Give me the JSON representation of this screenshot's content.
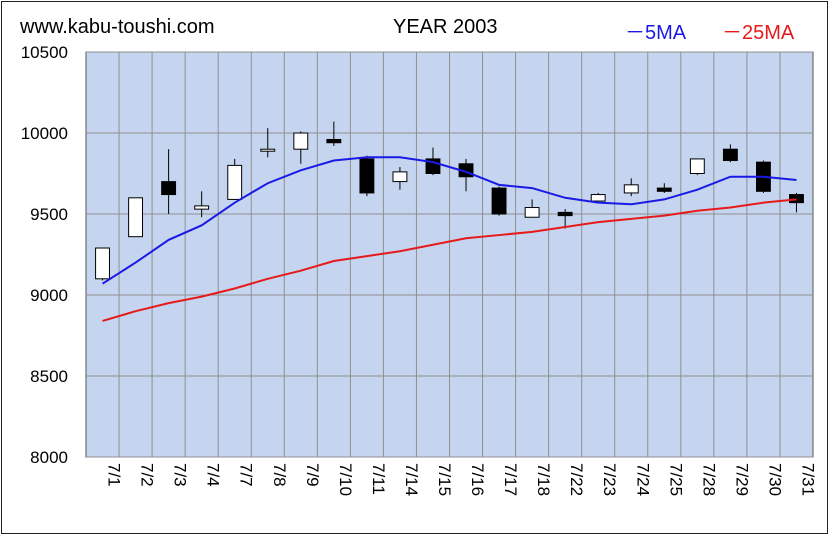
{
  "header": {
    "site": "www.kabu-toushi.com",
    "title": "YEAR 2003",
    "legend_ma5": "－5MA",
    "legend_ma25": "－25MA"
  },
  "colors": {
    "plot_bg": "#c5d5ef",
    "grid": "#8f8f8f",
    "ma5": "#1a1ae6",
    "ma25": "#e61a1a",
    "up_candle": "#ffffff",
    "down_candle": "#000000"
  },
  "chart_data": {
    "type": "candlestick",
    "title": "YEAR 2003",
    "categories": [
      "7/1",
      "7/2",
      "7/3",
      "7/4",
      "7/7",
      "7/8",
      "7/9",
      "7/10",
      "7/11",
      "7/14",
      "7/15",
      "7/16",
      "7/17",
      "7/18",
      "7/22",
      "7/23",
      "7/24",
      "7/25",
      "7/28",
      "7/29",
      "7/30",
      "7/31"
    ],
    "ylim": [
      8000,
      10500
    ],
    "yticks": [
      8000,
      8500,
      9000,
      9500,
      10000,
      10500
    ],
    "grid": true,
    "legend_position": "top-right",
    "candles": [
      {
        "open": 9100,
        "high": 9290,
        "low": 9090,
        "close": 9290
      },
      {
        "open": 9360,
        "high": 9600,
        "low": 9360,
        "close": 9600
      },
      {
        "open": 9700,
        "high": 9900,
        "low": 9500,
        "close": 9620
      },
      {
        "open": 9530,
        "high": 9640,
        "low": 9480,
        "close": 9550
      },
      {
        "open": 9590,
        "high": 9840,
        "low": 9590,
        "close": 9800
      },
      {
        "open": 9890,
        "high": 10030,
        "low": 9850,
        "close": 9900
      },
      {
        "open": 9900,
        "high": 10010,
        "low": 9810,
        "close": 10000
      },
      {
        "open": 9960,
        "high": 10070,
        "low": 9920,
        "close": 9940
      },
      {
        "open": 9840,
        "high": 9860,
        "low": 9610,
        "close": 9630
      },
      {
        "open": 9700,
        "high": 9790,
        "low": 9650,
        "close": 9760
      },
      {
        "open": 9840,
        "high": 9910,
        "low": 9740,
        "close": 9750
      },
      {
        "open": 9810,
        "high": 9840,
        "low": 9640,
        "close": 9730
      },
      {
        "open": 9660,
        "high": 9670,
        "low": 9490,
        "close": 9500
      },
      {
        "open": 9480,
        "high": 9590,
        "low": 9480,
        "close": 9540
      },
      {
        "open": 9510,
        "high": 9530,
        "low": 9410,
        "close": 9490
      },
      {
        "open": 9580,
        "high": 9630,
        "low": 9580,
        "close": 9620
      },
      {
        "open": 9630,
        "high": 9720,
        "low": 9610,
        "close": 9680
      },
      {
        "open": 9660,
        "high": 9690,
        "low": 9630,
        "close": 9640
      },
      {
        "open": 9750,
        "high": 9840,
        "low": 9740,
        "close": 9840
      },
      {
        "open": 9900,
        "high": 9930,
        "low": 9820,
        "close": 9830
      },
      {
        "open": 9820,
        "high": 9830,
        "low": 9630,
        "close": 9640
      },
      {
        "open": 9620,
        "high": 9630,
        "low": 9510,
        "close": 9570
      }
    ],
    "series": [
      {
        "name": "5MA",
        "values": [
          9070,
          9200,
          9340,
          9430,
          9570,
          9690,
          9770,
          9830,
          9850,
          9850,
          9820,
          9760,
          9680,
          9660,
          9600,
          9570,
          9560,
          9590,
          9650,
          9730,
          9730,
          9710
        ]
      },
      {
        "name": "25MA",
        "values": [
          8840,
          8900,
          8950,
          8990,
          9040,
          9100,
          9150,
          9210,
          9240,
          9270,
          9310,
          9350,
          9370,
          9390,
          9420,
          9450,
          9470,
          9490,
          9520,
          9540,
          9570,
          9590
        ]
      }
    ]
  }
}
